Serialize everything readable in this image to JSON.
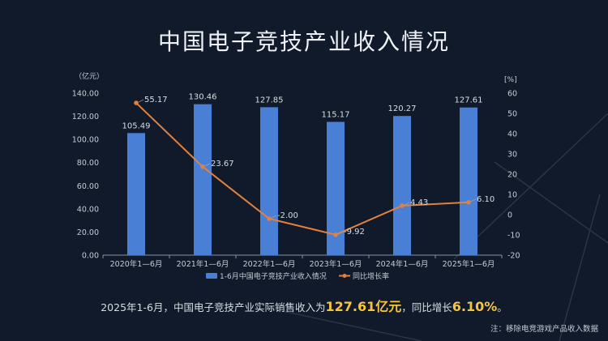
{
  "title": "中国电子竞技产业收入情况",
  "chart_data": {
    "type": "bar+line",
    "categories": [
      "2020年1—6月",
      "2021年1—6月",
      "2022年1—6月",
      "2023年1—6月",
      "2024年1—6月",
      "2025年1—6月"
    ],
    "series": [
      {
        "name": "1-6月中国电子竞技产业收入情况",
        "type": "bar",
        "axis": "left",
        "color": "#4a7fd6",
        "values": [
          105.49,
          130.46,
          127.85,
          115.17,
          120.27,
          127.61
        ],
        "labels": [
          "105.49",
          "130.46",
          "127.85",
          "115.17",
          "120.27",
          "127.61"
        ]
      },
      {
        "name": "同比增长率",
        "type": "line",
        "axis": "right",
        "color": "#e2813e",
        "values": [
          55.17,
          23.67,
          -2.0,
          -9.92,
          4.43,
          6.1
        ],
        "labels": [
          "55.17",
          "23.67",
          "-2.00",
          "-9.92",
          "4.43",
          "6.10"
        ]
      }
    ],
    "left_axis": {
      "unit": "（亿元）",
      "ylim": [
        0,
        140
      ],
      "ticks": [
        "0.00",
        "20.00",
        "40.00",
        "60.00",
        "80.00",
        "100.00",
        "120.00",
        "140.00"
      ]
    },
    "right_axis": {
      "unit": "[%]",
      "ylim": [
        -20,
        60
      ],
      "ticks": [
        "-20",
        "-10",
        "0",
        "10",
        "20",
        "30",
        "40",
        "50",
        "60"
      ]
    },
    "legend": "bottom",
    "grid": false
  },
  "summary": {
    "prefix": "2025年1-6月，中国电子竞技产业实际销售收入为",
    "revenue": "127.61亿元",
    "mid": "，同比增长",
    "growth": "6.10%",
    "suffix": "。"
  },
  "note": "注：移除电竞游戏产品收入数据"
}
